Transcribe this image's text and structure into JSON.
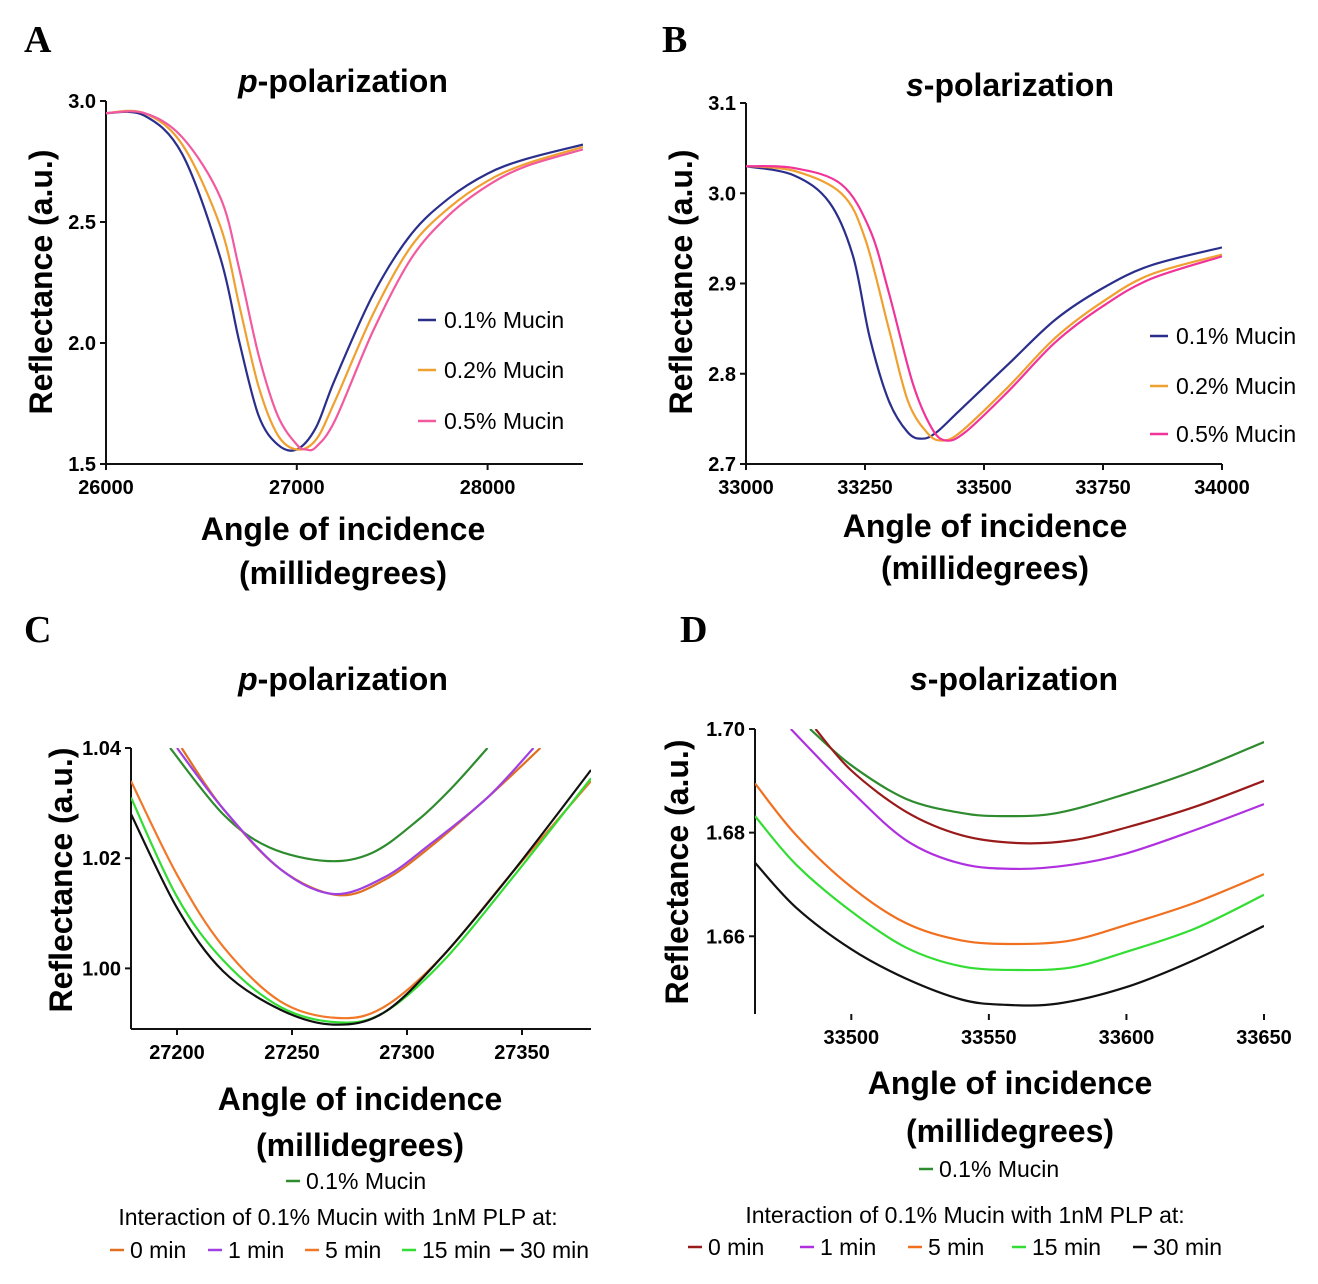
{
  "chart_data": [
    {
      "panel": "A",
      "type": "line",
      "title_prefix": "p",
      "title_suffix": "-polarization",
      "xlabel_line1": "Angle of incidence",
      "xlabel_line2": "(millidegrees)",
      "ylabel": "Reflectance (a.u.)",
      "xlim": [
        26000,
        28500
      ],
      "ylim": [
        1.5,
        3.0
      ],
      "xticks": [
        "26000",
        "27000",
        "28000"
      ],
      "yticks": [
        "1.5",
        "2.0",
        "2.5",
        "3.0"
      ],
      "legend_position": "right",
      "series": [
        {
          "name": "0.1% Mucin",
          "color": "#2b2f8c",
          "points": [
            [
              26000,
              2.95
            ],
            [
              26200,
              2.94
            ],
            [
              26400,
              2.78
            ],
            [
              26600,
              2.35
            ],
            [
              26700,
              2.0
            ],
            [
              26800,
              1.7
            ],
            [
              26900,
              1.58
            ],
            [
              27000,
              1.56
            ],
            [
              27100,
              1.65
            ],
            [
              27200,
              1.85
            ],
            [
              27400,
              2.2
            ],
            [
              27600,
              2.45
            ],
            [
              27800,
              2.6
            ],
            [
              28000,
              2.7
            ],
            [
              28200,
              2.76
            ],
            [
              28500,
              2.82
            ]
          ]
        },
        {
          "name": "0.2% Mucin",
          "color": "#f0a030",
          "points": [
            [
              26000,
              2.95
            ],
            [
              26200,
              2.95
            ],
            [
              26400,
              2.82
            ],
            [
              26600,
              2.48
            ],
            [
              26700,
              2.15
            ],
            [
              26800,
              1.82
            ],
            [
              26900,
              1.62
            ],
            [
              27000,
              1.56
            ],
            [
              27100,
              1.6
            ],
            [
              27200,
              1.76
            ],
            [
              27400,
              2.12
            ],
            [
              27600,
              2.4
            ],
            [
              27800,
              2.56
            ],
            [
              28000,
              2.67
            ],
            [
              28200,
              2.74
            ],
            [
              28500,
              2.81
            ]
          ]
        },
        {
          "name": "0.5% Mucin",
          "color": "#f25aa0",
          "points": [
            [
              26000,
              2.95
            ],
            [
              26200,
              2.95
            ],
            [
              26400,
              2.85
            ],
            [
              26600,
              2.6
            ],
            [
              26700,
              2.3
            ],
            [
              26800,
              1.95
            ],
            [
              26900,
              1.7
            ],
            [
              27000,
              1.58
            ],
            [
              27050,
              1.56
            ],
            [
              27100,
              1.57
            ],
            [
              27200,
              1.68
            ],
            [
              27400,
              2.05
            ],
            [
              27600,
              2.35
            ],
            [
              27800,
              2.53
            ],
            [
              28000,
              2.65
            ],
            [
              28200,
              2.73
            ],
            [
              28500,
              2.8
            ]
          ]
        }
      ]
    },
    {
      "panel": "B",
      "type": "line",
      "title_prefix": "s",
      "title_suffix": "-polarization",
      "xlabel_line1": "Angle of incidence",
      "xlabel_line2": "(millidegrees)",
      "ylabel": "Reflectance (a.u.)",
      "xlim": [
        33000,
        34000
      ],
      "ylim": [
        2.7,
        3.1
      ],
      "xticks": [
        "33000",
        "33250",
        "33500",
        "33750",
        "34000"
      ],
      "yticks": [
        "2.7",
        "2.8",
        "2.9",
        "3.0",
        "3.1"
      ],
      "legend_position": "right",
      "series": [
        {
          "name": "0.1% Mucin",
          "color": "#2b2f8c",
          "points": [
            [
              33000,
              3.03
            ],
            [
              33100,
              3.02
            ],
            [
              33175,
              2.99
            ],
            [
              33225,
              2.93
            ],
            [
              33260,
              2.84
            ],
            [
              33300,
              2.77
            ],
            [
              33340,
              2.735
            ],
            [
              33370,
              2.728
            ],
            [
              33400,
              2.735
            ],
            [
              33450,
              2.76
            ],
            [
              33550,
              2.81
            ],
            [
              33650,
              2.86
            ],
            [
              33750,
              2.895
            ],
            [
              33850,
              2.92
            ],
            [
              34000,
              2.94
            ]
          ]
        },
        {
          "name": "0.2% Mucin",
          "color": "#f0a030",
          "points": [
            [
              33000,
              3.03
            ],
            [
              33100,
              3.025
            ],
            [
              33200,
              3.0
            ],
            [
              33250,
              2.95
            ],
            [
              33300,
              2.85
            ],
            [
              33340,
              2.77
            ],
            [
              33380,
              2.735
            ],
            [
              33410,
              2.726
            ],
            [
              33450,
              2.735
            ],
            [
              33550,
              2.785
            ],
            [
              33650,
              2.84
            ],
            [
              33750,
              2.88
            ],
            [
              33850,
              2.91
            ],
            [
              34000,
              2.932
            ]
          ]
        },
        {
          "name": "0.5% Mucin",
          "color": "#f0349a",
          "points": [
            [
              33000,
              3.03
            ],
            [
              33100,
              3.028
            ],
            [
              33200,
              3.01
            ],
            [
              33260,
              2.96
            ],
            [
              33300,
              2.89
            ],
            [
              33350,
              2.79
            ],
            [
              33390,
              2.74
            ],
            [
              33420,
              2.726
            ],
            [
              33460,
              2.735
            ],
            [
              33550,
              2.78
            ],
            [
              33650,
              2.835
            ],
            [
              33750,
              2.875
            ],
            [
              33850,
              2.905
            ],
            [
              34000,
              2.93
            ]
          ]
        }
      ]
    },
    {
      "panel": "C",
      "type": "line",
      "title_prefix": "p",
      "title_suffix": "-polarization",
      "xlabel_line1": "Angle of incidence",
      "xlabel_line2": "(millidegrees)",
      "ylabel": "Reflectance (a.u.)",
      "xlim": [
        27180,
        27380
      ],
      "ylim": [
        0.989,
        1.04
      ],
      "xticks": [
        "27200",
        "27250",
        "27300",
        "27350"
      ],
      "yticks": [
        "1.00",
        "1.02",
        "1.04"
      ],
      "legend_top": "0.1% Mucin",
      "legend_caption": "Interaction of 0.1% Mucin with 1nM PLP at:",
      "legend_position": "bottom",
      "legend_items": [
        "0 min",
        "1 min",
        "5 min",
        "15 min",
        "30 min"
      ],
      "series": [
        {
          "name": "0.1% Mucin",
          "color": "#2e8b2e",
          "points": [
            [
              27197,
              1.04
            ],
            [
              27220,
              1.028
            ],
            [
              27240,
              1.022
            ],
            [
              27265,
              1.0195
            ],
            [
              27285,
              1.021
            ],
            [
              27305,
              1.027
            ],
            [
              27320,
              1.033
            ],
            [
              27335,
              1.04
            ]
          ]
        },
        {
          "name": "0 min",
          "color": "#e07020",
          "points": [
            [
              27202,
              1.04
            ],
            [
              27220,
              1.029
            ],
            [
              27245,
              1.018
            ],
            [
              27270,
              1.0133
            ],
            [
              27290,
              1.016
            ],
            [
              27310,
              1.022
            ],
            [
              27335,
              1.031
            ],
            [
              27358,
              1.04
            ]
          ]
        },
        {
          "name": "1 min",
          "color": "#a040e0",
          "points": [
            [
              27200,
              1.04
            ],
            [
              27220,
              1.029
            ],
            [
              27245,
              1.018
            ],
            [
              27268,
              1.0135
            ],
            [
              27290,
              1.0165
            ],
            [
              27310,
              1.0225
            ],
            [
              27335,
              1.031
            ],
            [
              27355,
              1.04
            ]
          ]
        },
        {
          "name": "5 min",
          "color": "#f07828",
          "points": [
            [
              27180,
              1.034
            ],
            [
              27200,
              1.017
            ],
            [
              27220,
              1.004
            ],
            [
              27245,
              0.994
            ],
            [
              27270,
              0.991
            ],
            [
              27290,
              0.993
            ],
            [
              27315,
              1.002
            ],
            [
              27345,
              1.017
            ],
            [
              27380,
              1.034
            ]
          ]
        },
        {
          "name": "15 min",
          "color": "#33dd33",
          "points": [
            [
              27180,
              1.031
            ],
            [
              27200,
              1.013
            ],
            [
              27220,
              1.0015
            ],
            [
              27245,
              0.993
            ],
            [
              27270,
              0.9902
            ],
            [
              27290,
              0.992
            ],
            [
              27315,
              1.001
            ],
            [
              27345,
              1.016
            ],
            [
              27380,
              1.0345
            ]
          ]
        },
        {
          "name": "30 min",
          "color": "#111111",
          "points": [
            [
              27180,
              1.028
            ],
            [
              27200,
              1.011
            ],
            [
              27220,
              0.9995
            ],
            [
              27245,
              0.9925
            ],
            [
              27268,
              0.9898
            ],
            [
              27290,
              0.992
            ],
            [
              27315,
              1.002
            ],
            [
              27345,
              1.017
            ],
            [
              27380,
              1.036
            ]
          ]
        }
      ]
    },
    {
      "panel": "D",
      "type": "line",
      "title_prefix": "s",
      "title_suffix": "-polarization",
      "xlabel_line1": "Angle of incidence",
      "xlabel_line2": "(millidegrees)",
      "ylabel": "Reflectance (a.u.)",
      "xlim": [
        33465,
        33650
      ],
      "ylim": [
        1.645,
        1.7
      ],
      "xticks": [
        "33500",
        "33550",
        "33600",
        "33650"
      ],
      "yticks": [
        "1.66",
        "1.68",
        "1.70"
      ],
      "legend_top": "0.1% Mucin",
      "legend_caption": "Interaction of 0.1% Mucin with 1nM PLP at:",
      "legend_position": "bottom",
      "legend_items": [
        "0 min",
        "1 min",
        "5 min",
        "15 min",
        "30 min"
      ],
      "series": [
        {
          "name": "0.1% Mucin",
          "color": "#2e8b2e",
          "points": [
            [
              33485,
              1.7
            ],
            [
              33500,
              1.693
            ],
            [
              33520,
              1.6865
            ],
            [
              33540,
              1.6838
            ],
            [
              33555,
              1.6832
            ],
            [
              33575,
              1.6838
            ],
            [
              33600,
              1.6875
            ],
            [
              33625,
              1.692
            ],
            [
              33650,
              1.6975
            ]
          ]
        },
        {
          "name": "0 min",
          "color": "#991a1a",
          "points": [
            [
              33487,
              1.7
            ],
            [
              33500,
              1.692
            ],
            [
              33520,
              1.684
            ],
            [
              33540,
              1.6795
            ],
            [
              33560,
              1.678
            ],
            [
              33580,
              1.6785
            ],
            [
              33600,
              1.681
            ],
            [
              33625,
              1.685
            ],
            [
              33650,
              1.69
            ]
          ]
        },
        {
          "name": "1 min",
          "color": "#b030e0",
          "points": [
            [
              33478,
              1.7
            ],
            [
              33500,
              1.688
            ],
            [
              33520,
              1.6785
            ],
            [
              33540,
              1.674
            ],
            [
              33560,
              1.673
            ],
            [
              33580,
              1.6738
            ],
            [
              33600,
              1.676
            ],
            [
              33625,
              1.6805
            ],
            [
              33650,
              1.6855
            ]
          ]
        },
        {
          "name": "5 min",
          "color": "#f07020",
          "points": [
            [
              33465,
              1.6895
            ],
            [
              33480,
              1.6795
            ],
            [
              33500,
              1.6695
            ],
            [
              33520,
              1.6625
            ],
            [
              33540,
              1.6592
            ],
            [
              33560,
              1.6585
            ],
            [
              33580,
              1.6592
            ],
            [
              33600,
              1.6622
            ],
            [
              33625,
              1.6665
            ],
            [
              33650,
              1.672
            ]
          ]
        },
        {
          "name": "15 min",
          "color": "#33dd33",
          "points": [
            [
              33465,
              1.6832
            ],
            [
              33480,
              1.6738
            ],
            [
              33500,
              1.6648
            ],
            [
              33520,
              1.6578
            ],
            [
              33540,
              1.6542
            ],
            [
              33560,
              1.6535
            ],
            [
              33580,
              1.654
            ],
            [
              33600,
              1.657
            ],
            [
              33625,
              1.6615
            ],
            [
              33650,
              1.668
            ]
          ]
        },
        {
          "name": "30 min",
          "color": "#111111",
          "points": [
            [
              33465,
              1.6742
            ],
            [
              33480,
              1.6655
            ],
            [
              33500,
              1.6575
            ],
            [
              33520,
              1.6518
            ],
            [
              33540,
              1.6478
            ],
            [
              33555,
              1.6468
            ],
            [
              33575,
              1.647
            ],
            [
              33600,
              1.6502
            ],
            [
              33625,
              1.6555
            ],
            [
              33650,
              1.662
            ]
          ]
        }
      ]
    }
  ]
}
